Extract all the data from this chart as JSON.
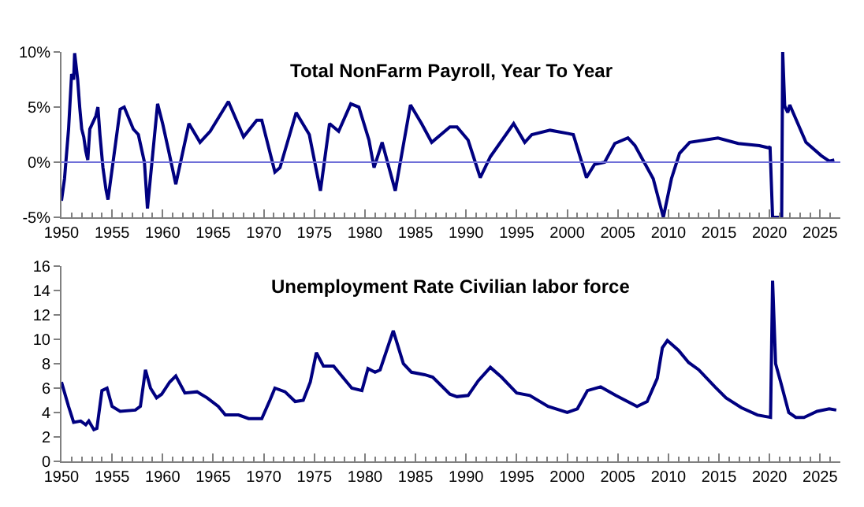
{
  "chart_data": [
    {
      "type": "line",
      "title": "Total NonFarm Payroll, Year To Year",
      "x": [
        1950.0,
        1950.3,
        1950.7,
        1951.0,
        1951.2,
        1951.3,
        1951.6,
        1951.8,
        1952.0,
        1952.2,
        1952.4,
        1952.6,
        1952.8,
        1953.2,
        1953.4,
        1953.6,
        1953.8,
        1954.1,
        1954.4,
        1954.6,
        1955.8,
        1956.2,
        1957.1,
        1957.6,
        1958.2,
        1958.5,
        1959.5,
        1960.0,
        1960.6,
        1961.3,
        1962.6,
        1963.7,
        1964.7,
        1966.5,
        1968.0,
        1969.3,
        1969.8,
        1971.1,
        1971.6,
        1973.2,
        1974.5,
        1975.6,
        1976.5,
        1977.4,
        1978.6,
        1979.4,
        1980.4,
        1980.9,
        1981.7,
        1983.0,
        1984.5,
        1985.6,
        1986.6,
        1988.4,
        1989.1,
        1990.2,
        1991.4,
        1992.4,
        1994.7,
        1995.8,
        1996.5,
        1998.3,
        2000.1,
        2000.6,
        2001.9,
        2002.7,
        2003.7,
        2004.7,
        2006.0,
        2006.7,
        2008.5,
        2009.5,
        2010.3,
        2011.1,
        2012.1,
        2014.9,
        2016.9,
        2019.0,
        2019.9,
        2020.05,
        2020.3,
        2021.2,
        2021.3,
        2021.5,
        2021.8,
        2022.0,
        2022.8,
        2023.6,
        2025.1,
        2025.9,
        2026.4
      ],
      "series": [
        {
          "color": "#000080",
          "values": [
            -3.5,
            -1.5,
            3,
            8,
            7.5,
            9.9,
            7.5,
            5,
            3,
            2.3,
            1,
            0.2,
            3,
            3.8,
            4.2,
            5,
            2.5,
            -0.5,
            -2.5,
            -3.4,
            4.8,
            5,
            3,
            2.5,
            0,
            -4.2,
            5.3,
            3.5,
            1,
            -2,
            3.5,
            1.8,
            2.8,
            5.5,
            2.3,
            3.8,
            3.8,
            -0.9,
            -0.5,
            4.5,
            2.5,
            -2.6,
            3.5,
            2.8,
            5.3,
            5,
            2,
            -0.5,
            1.8,
            -2.6,
            5.2,
            3.5,
            1.8,
            3.2,
            3.2,
            2,
            -1.4,
            0.5,
            3.5,
            1.8,
            2.5,
            2.9,
            2.6,
            2.5,
            -1.4,
            -0.2,
            0,
            1.7,
            2.2,
            1.5,
            -1.5,
            -5,
            -1.5,
            0.8,
            1.8,
            2.2,
            1.7,
            1.5,
            1.3,
            1.4,
            -5,
            -5,
            10,
            5.1,
            4.5,
            5.2,
            3.5,
            1.8,
            0.6,
            0.1,
            0.2
          ]
        }
      ],
      "xlim": [
        1950,
        2027
      ],
      "xticks": [
        1950,
        1955,
        1960,
        1965,
        1970,
        1975,
        1980,
        1985,
        1990,
        1995,
        2000,
        2005,
        2010,
        2015,
        2020,
        2025
      ],
      "ylim": [
        -5,
        10
      ],
      "yticks": [
        {
          "value": -5,
          "label": "-5%"
        },
        {
          "value": 0,
          "label": "0%"
        },
        {
          "value": 5,
          "label": "5%"
        },
        {
          "value": 10,
          "label": "10%"
        }
      ],
      "ref_lines": [
        {
          "axis": "y",
          "value": 0,
          "color": "#6f6fd8"
        }
      ]
    },
    {
      "type": "line",
      "title": "Unemployment Rate Civilian labor force",
      "x": [
        1950.0,
        1950.7,
        1951.2,
        1951.9,
        1952.4,
        1952.7,
        1953.2,
        1953.5,
        1954.0,
        1954.5,
        1955.0,
        1955.8,
        1957.3,
        1957.8,
        1958.3,
        1958.8,
        1959.4,
        1959.9,
        1960.7,
        1961.3,
        1962.2,
        1963.4,
        1964.4,
        1965.5,
        1966.2,
        1967.5,
        1968.5,
        1969.8,
        1970.6,
        1971.1,
        1972.1,
        1973.1,
        1973.9,
        1974.6,
        1975.2,
        1975.9,
        1976.9,
        1977.7,
        1978.7,
        1979.7,
        1980.3,
        1981.0,
        1981.5,
        1982.8,
        1983.8,
        1984.6,
        1985.9,
        1986.7,
        1988.4,
        1989.1,
        1990.2,
        1991.2,
        1992.4,
        1993.5,
        1995.0,
        1996.3,
        1998.1,
        2000.0,
        2001.0,
        2002.0,
        2003.3,
        2004.8,
        2006.9,
        2007.9,
        2008.9,
        2009.4,
        2009.9,
        2011.0,
        2012.0,
        2013.0,
        2014.6,
        2015.7,
        2017.2,
        2018.8,
        2020.1,
        2020.3,
        2020.6,
        2021.1,
        2021.9,
        2022.6,
        2023.4,
        2024.7,
        2025.9,
        2026.6
      ],
      "series": [
        {
          "color": "#000080",
          "values": [
            6.5,
            4.5,
            3.2,
            3.3,
            3.0,
            3.3,
            2.6,
            2.7,
            5.8,
            6.0,
            4.5,
            4.1,
            4.2,
            4.5,
            7.5,
            6,
            5.2,
            5.5,
            6.5,
            7.0,
            5.6,
            5.7,
            5.2,
            4.5,
            3.8,
            3.8,
            3.5,
            3.5,
            5.0,
            6.0,
            5.7,
            4.9,
            5.0,
            6.5,
            8.9,
            7.8,
            7.8,
            7,
            6.0,
            5.8,
            7.6,
            7.3,
            7.5,
            10.7,
            8,
            7.3,
            7.1,
            6.9,
            5.5,
            5.3,
            5.4,
            6.6,
            7.7,
            6.9,
            5.6,
            5.4,
            4.5,
            4.0,
            4.3,
            5.8,
            6.1,
            5.4,
            4.5,
            4.9,
            6.8,
            9.3,
            9.9,
            9.1,
            8.1,
            7.5,
            6.1,
            5.2,
            4.4,
            3.8,
            3.6,
            14.8,
            8,
            6.5,
            4.0,
            3.6,
            3.6,
            4.1,
            4.3,
            4.2
          ]
        }
      ],
      "xlim": [
        1950,
        2027
      ],
      "xticks": [
        1950,
        1955,
        1960,
        1965,
        1970,
        1975,
        1980,
        1985,
        1990,
        1995,
        2000,
        2005,
        2010,
        2015,
        2020,
        2025
      ],
      "ylim": [
        0,
        16
      ],
      "yticks": [
        0,
        2,
        4,
        6,
        8,
        10,
        12,
        14,
        16
      ]
    }
  ]
}
